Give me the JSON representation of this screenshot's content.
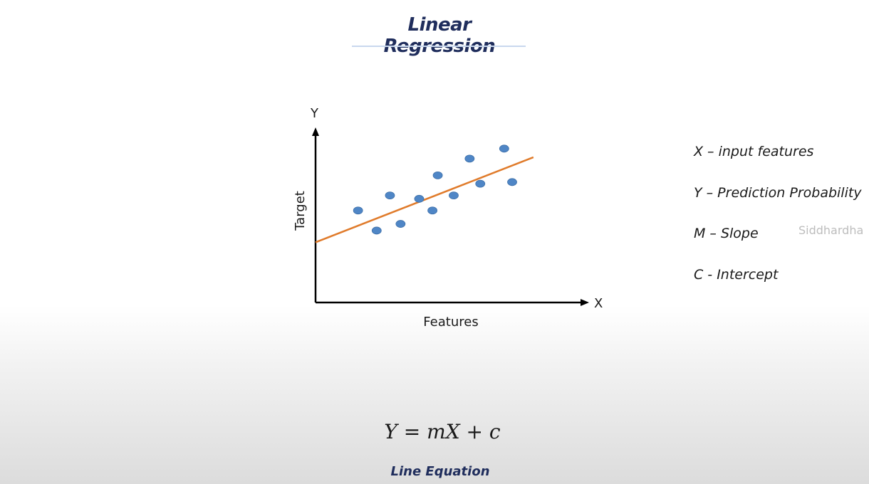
{
  "slide": {
    "title": "Linear Regression",
    "equation": "Y = mX + c",
    "equation_caption": "Line Equation",
    "watermark": "Siddhardha"
  },
  "legend": [
    "X – input features",
    "Y – Prediction Probability",
    "M – Slope",
    "C - Intercept"
  ],
  "colors": {
    "title": "#1f2d5c",
    "points": "#4f86c6",
    "line": "#e07b2b",
    "axes": "#000000"
  },
  "chart_data": {
    "type": "scatter",
    "xlabel": "Features",
    "ylabel": "Target",
    "x_axis_symbol": "X",
    "y_axis_symbol": "Y",
    "xlim": [
      0,
      100
    ],
    "ylim": [
      0,
      100
    ],
    "grid": false,
    "points": [
      {
        "x": 16,
        "y": 55
      },
      {
        "x": 23,
        "y": 43
      },
      {
        "x": 28,
        "y": 64
      },
      {
        "x": 32,
        "y": 47
      },
      {
        "x": 39,
        "y": 62
      },
      {
        "x": 44,
        "y": 55
      },
      {
        "x": 46,
        "y": 76
      },
      {
        "x": 52,
        "y": 64
      },
      {
        "x": 58,
        "y": 86
      },
      {
        "x": 62,
        "y": 71
      },
      {
        "x": 71,
        "y": 92
      },
      {
        "x": 74,
        "y": 72
      }
    ],
    "fit_line": {
      "slope": 0.62,
      "intercept": 36,
      "x_range": [
        0,
        82
      ]
    }
  }
}
